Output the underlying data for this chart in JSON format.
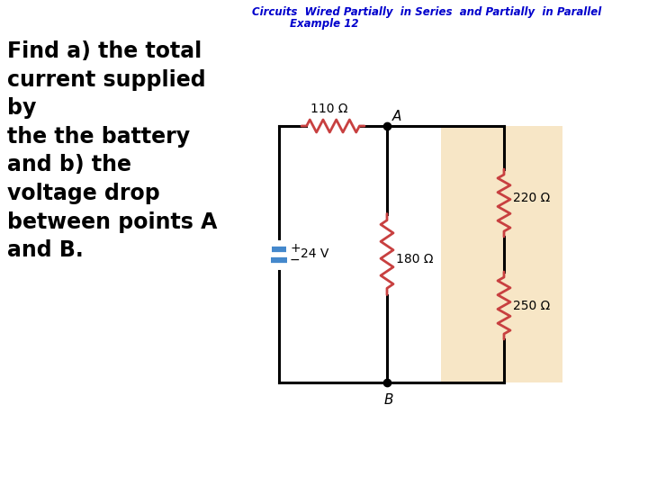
{
  "title_line1": "Circuits  Wired Partially  in Series  and Partially  in Parallel",
  "title_line2": "Example 12",
  "title_color": "#0000CC",
  "title_fontsize": 8.5,
  "body_text": "Find a) the total\ncurrent supplied\nby\nthe the battery\nand b) the\nvoltage drop\nbetween points A\nand B.",
  "body_fontsize": 17,
  "body_color": "#000000",
  "background_color": "#ffffff",
  "circuit": {
    "battery_voltage": "24 V",
    "r1": "110 Ω",
    "r2": "180 Ω",
    "r3": "220 Ω",
    "r4": "250 Ω",
    "point_A": "A",
    "point_B": "B",
    "resistor_color": "#C84040",
    "wire_color": "#000000",
    "battery_color": "#4488CC",
    "parallel_bg": "#F5DEB3"
  },
  "figsize": [
    7.2,
    5.4
  ],
  "dpi": 100
}
